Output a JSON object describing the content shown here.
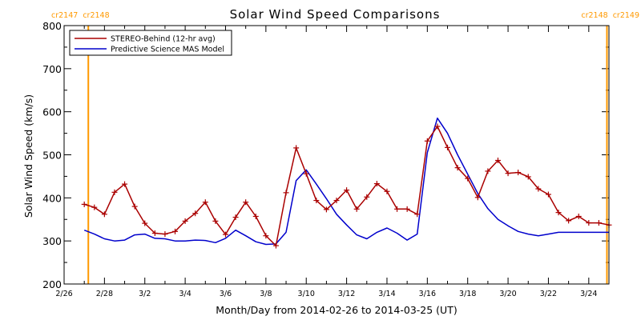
{
  "chart_data": {
    "type": "line",
    "title": "Solar Wind Speed Comparisons",
    "xlabel": "Month/Day from 2014-02-26 to 2014-03-25 (UT)",
    "ylabel": "Solar Wind Speed (km/s)",
    "ylim": [
      200,
      800
    ],
    "yticks": [
      200,
      300,
      400,
      500,
      600,
      700,
      800
    ],
    "x_range_days": [
      0,
      27
    ],
    "xticks": [
      {
        "day": 0,
        "label": "2/26"
      },
      {
        "day": 2,
        "label": "2/28"
      },
      {
        "day": 4,
        "label": "3/2"
      },
      {
        "day": 6,
        "label": "3/4"
      },
      {
        "day": 8,
        "label": "3/6"
      },
      {
        "day": 10,
        "label": "3/8"
      },
      {
        "day": 12,
        "label": "3/10"
      },
      {
        "day": 14,
        "label": "3/12"
      },
      {
        "day": 16,
        "label": "3/14"
      },
      {
        "day": 18,
        "label": "3/16"
      },
      {
        "day": 20,
        "label": "3/18"
      },
      {
        "day": 22,
        "label": "3/20"
      },
      {
        "day": 24,
        "label": "3/22"
      },
      {
        "day": 26,
        "label": "3/24"
      }
    ],
    "legend": {
      "placement": "top-left",
      "entries": [
        {
          "name": "STEREO-Behind (12-hr avg)",
          "color": "#aa0000"
        },
        {
          "name": "Predictive Science MAS Model",
          "color": "#0000cc"
        }
      ]
    },
    "carrington_markers": [
      {
        "day": 1.2,
        "left_label": "cr2147",
        "right_label": "cr2148",
        "color": "#ff9900"
      },
      {
        "day": 26.9,
        "left_label": "cr2148",
        "right_label": "cr2149",
        "color": "#ff9900"
      }
    ],
    "series": [
      {
        "name": "STEREO-Behind (12-hr avg)",
        "color": "#aa0000",
        "markers": true,
        "x": [
          1.0,
          1.5,
          2.0,
          2.5,
          3.0,
          3.5,
          4.0,
          4.5,
          5.0,
          5.5,
          6.0,
          6.5,
          7.0,
          7.5,
          8.0,
          8.5,
          9.0,
          9.5,
          10.0,
          10.5,
          11.0,
          11.5,
          12.0,
          12.5,
          13.0,
          13.5,
          14.0,
          14.5,
          15.0,
          15.5,
          16.0,
          16.5,
          17.0,
          17.5,
          18.0,
          18.5,
          19.0,
          19.5,
          20.0,
          20.5,
          21.0,
          21.5,
          22.0,
          22.5,
          23.0,
          23.5,
          24.0,
          24.5,
          25.0,
          25.5,
          26.0,
          26.5,
          27.0
        ],
        "y": [
          385,
          378,
          362,
          413,
          432,
          380,
          341,
          318,
          316,
          322,
          346,
          364,
          390,
          346,
          315,
          355,
          390,
          357,
          312,
          289,
          412,
          516,
          456,
          394,
          373,
          394,
          418,
          374,
          402,
          433,
          415,
          374,
          374,
          362,
          532,
          566,
          517,
          470,
          445,
          401,
          462,
          487,
          457,
          459,
          449,
          421,
          408,
          366,
          347,
          357,
          342,
          342,
          337
        ]
      },
      {
        "name": "Predictive Science MAS Model",
        "color": "#0000cc",
        "markers": false,
        "x": [
          1.0,
          1.5,
          2.0,
          2.5,
          3.0,
          3.5,
          4.0,
          4.5,
          5.0,
          5.5,
          6.0,
          6.5,
          7.0,
          7.5,
          8.0,
          8.5,
          9.0,
          9.5,
          10.0,
          10.5,
          11.0,
          11.5,
          12.0,
          12.5,
          13.0,
          13.5,
          14.0,
          14.5,
          15.0,
          15.5,
          16.0,
          16.5,
          17.0,
          17.5,
          18.0,
          18.5,
          19.0,
          19.5,
          20.0,
          20.5,
          21.0,
          21.5,
          22.0,
          22.5,
          23.0,
          23.5,
          24.0,
          24.5,
          25.0,
          25.5,
          26.0,
          26.5,
          27.0
        ],
        "y": [
          325,
          316,
          305,
          300,
          302,
          314,
          316,
          306,
          305,
          300,
          300,
          302,
          301,
          296,
          306,
          325,
          312,
          298,
          292,
          293,
          320,
          440,
          465,
          432,
          398,
          362,
          337,
          314,
          305,
          320,
          330,
          318,
          302,
          316,
          505,
          585,
          550,
          500,
          455,
          410,
          375,
          350,
          335,
          322,
          316,
          312,
          316,
          320,
          320,
          320,
          320,
          320,
          320
        ]
      }
    ]
  }
}
